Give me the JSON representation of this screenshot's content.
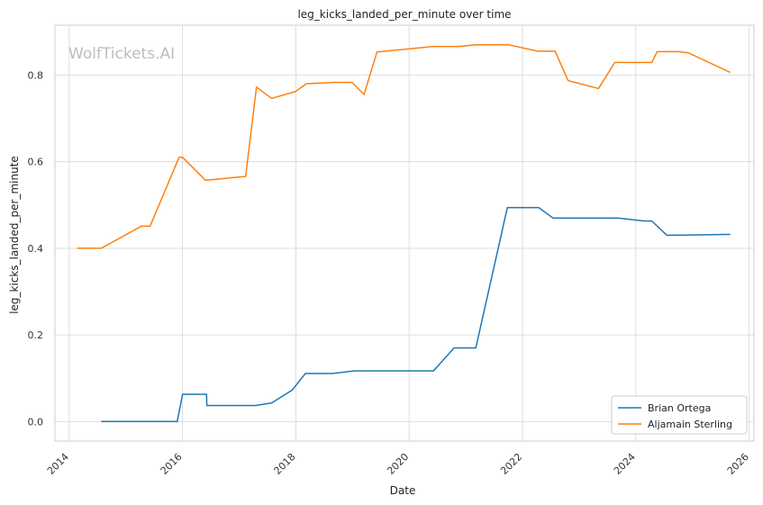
{
  "chart_data": {
    "type": "line",
    "title": "leg_kicks_landed_per_minute over time",
    "xlabel": "Date",
    "ylabel": "leg_kicks_landed_per_minute",
    "xlim": [
      "2013-10-01",
      "2026-02-01"
    ],
    "ylim": [
      -0.045,
      0.915
    ],
    "x_ticks": [
      "2014",
      "2016",
      "2018",
      "2020",
      "2022",
      "2024",
      "2026"
    ],
    "y_ticks": [
      "0.0",
      "0.2",
      "0.4",
      "0.6",
      "0.8"
    ],
    "grid": true,
    "legend_position": "bottom-right",
    "watermark": "WolfTickets.AI",
    "series": [
      {
        "name": "Brian Ortega",
        "color": "#1f77b4",
        "points": [
          [
            "2014-07-26",
            0.0
          ],
          [
            "2015-11-28",
            0.0
          ],
          [
            "2016-01-02",
            0.063
          ],
          [
            "2016-06-04",
            0.063
          ],
          [
            "2016-06-06",
            0.037
          ],
          [
            "2017-04-15",
            0.037
          ],
          [
            "2017-07-29",
            0.043
          ],
          [
            "2017-12-09",
            0.073
          ],
          [
            "2018-03-03",
            0.111
          ],
          [
            "2018-08-25",
            0.111
          ],
          [
            "2019-01-12",
            0.117
          ],
          [
            "2020-06-06",
            0.117
          ],
          [
            "2020-10-17",
            0.17
          ],
          [
            "2021-03-06",
            0.17
          ],
          [
            "2021-09-25",
            0.494
          ],
          [
            "2022-04-16",
            0.494
          ],
          [
            "2022-07-16",
            0.47
          ],
          [
            "2023-09-09",
            0.47
          ],
          [
            "2024-02-24",
            0.463
          ],
          [
            "2024-04-13",
            0.463
          ],
          [
            "2024-07-20",
            0.43
          ],
          [
            "2025-09-01",
            0.432
          ]
        ]
      },
      {
        "name": "Aljamain Sterling",
        "color": "#ff7f0e",
        "points": [
          [
            "2014-02-22",
            0.4
          ],
          [
            "2014-07-26",
            0.4
          ],
          [
            "2015-04-11",
            0.451
          ],
          [
            "2015-06-06",
            0.451
          ],
          [
            "2015-12-10",
            0.61
          ],
          [
            "2016-01-02",
            0.61
          ],
          [
            "2016-05-29",
            0.557
          ],
          [
            "2017-02-11",
            0.566
          ],
          [
            "2017-04-22",
            0.772
          ],
          [
            "2017-07-29",
            0.746
          ],
          [
            "2017-12-30",
            0.762
          ],
          [
            "2018-03-10",
            0.78
          ],
          [
            "2018-09-08",
            0.783
          ],
          [
            "2018-12-29",
            0.783
          ],
          [
            "2019-03-16",
            0.755
          ],
          [
            "2019-06-08",
            0.853
          ],
          [
            "2020-06-06",
            0.866
          ],
          [
            "2020-11-21",
            0.866
          ],
          [
            "2021-03-06",
            0.87
          ],
          [
            "2021-10-02",
            0.87
          ],
          [
            "2022-04-09",
            0.855
          ],
          [
            "2022-07-30",
            0.855
          ],
          [
            "2022-10-22",
            0.787
          ],
          [
            "2023-05-06",
            0.769
          ],
          [
            "2023-08-19",
            0.829
          ],
          [
            "2024-04-13",
            0.829
          ],
          [
            "2024-05-18",
            0.854
          ],
          [
            "2024-10-05",
            0.854
          ],
          [
            "2024-12-07",
            0.851
          ],
          [
            "2025-09-01",
            0.806
          ]
        ]
      }
    ]
  }
}
